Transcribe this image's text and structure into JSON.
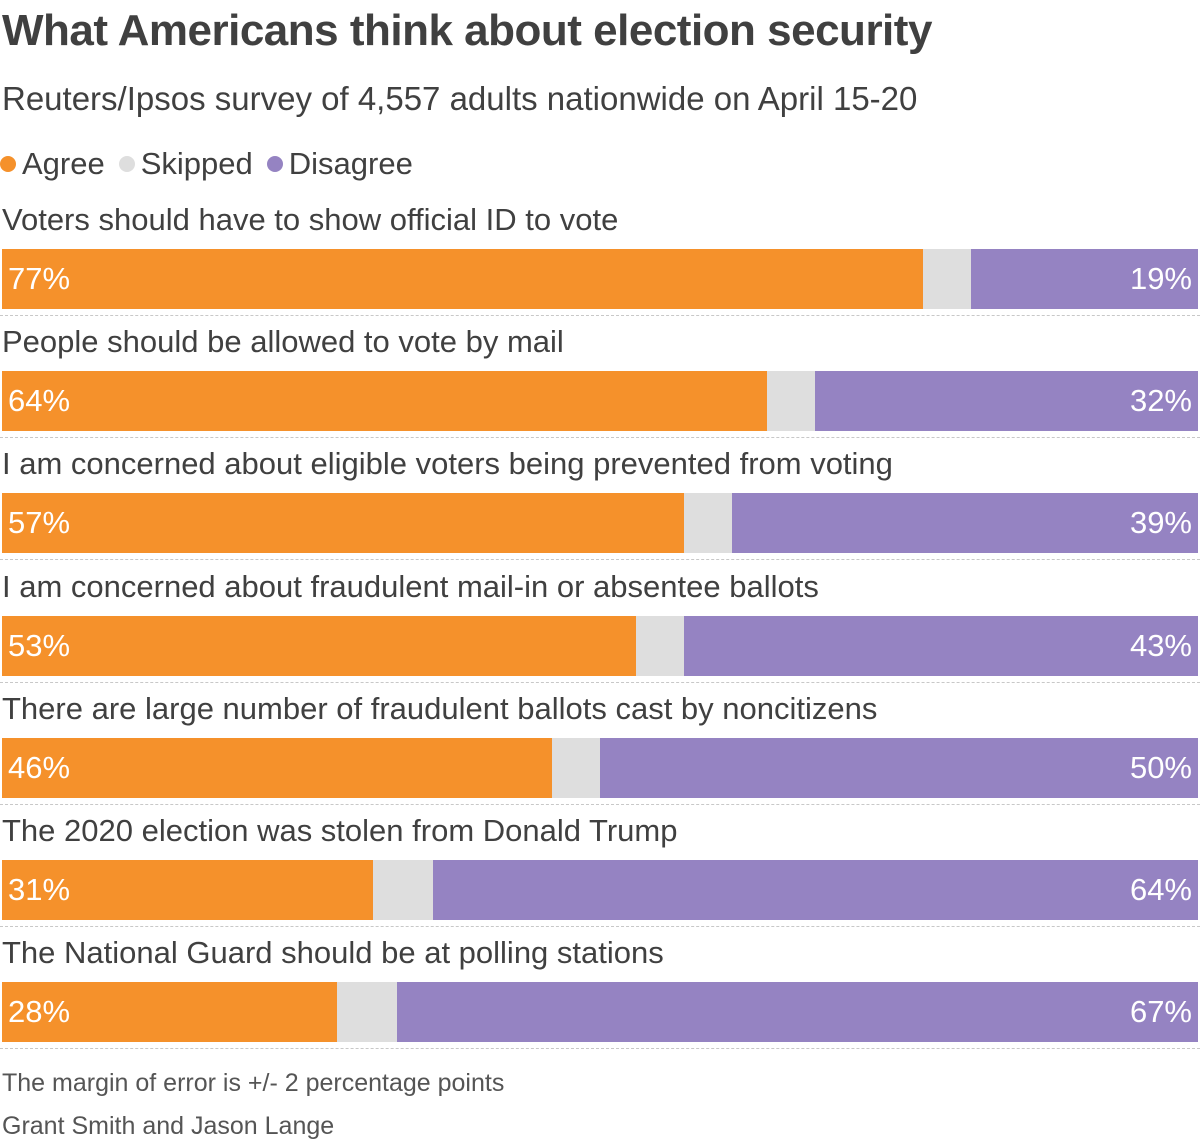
{
  "title": "What Americans think about election security",
  "subtitle": "Reuters/Ipsos survey of 4,557 adults nationwide on April 15-20",
  "colors": {
    "agree": "#f5912b",
    "skipped": "#dedede",
    "disagree": "#9583c2"
  },
  "legend": [
    {
      "key": "agree",
      "label": "Agree"
    },
    {
      "key": "skipped",
      "label": "Skipped"
    },
    {
      "key": "disagree",
      "label": "Disagree"
    }
  ],
  "chart_data": {
    "type": "bar",
    "orientation": "horizontal",
    "stacked": true,
    "unit": "%",
    "xlim": [
      0,
      100
    ],
    "categories": [
      "Voters should have to show official ID to vote",
      "People should be allowed to vote by mail",
      "I am concerned about eligible voters being prevented from voting",
      "I am concerned about fraudulent mail-in or absentee ballots",
      "There are large number of fraudulent ballots cast by noncitizens",
      "The 2020 election was stolen from Donald Trump",
      "The National Guard should be at polling stations"
    ],
    "series": [
      {
        "name": "Agree",
        "values": [
          77,
          64,
          57,
          53,
          46,
          31,
          28
        ]
      },
      {
        "name": "Skipped",
        "values": [
          4,
          4,
          4,
          4,
          4,
          5,
          5
        ]
      },
      {
        "name": "Disagree",
        "values": [
          19,
          32,
          39,
          43,
          50,
          64,
          67
        ]
      }
    ],
    "agree_labels": [
      "77%",
      "64%",
      "57%",
      "53%",
      "46%",
      "31%",
      "28%"
    ],
    "disagree_labels": [
      "19%",
      "32%",
      "39%",
      "43%",
      "50%",
      "64%",
      "67%"
    ]
  },
  "footnotes": {
    "margin_of_error": "The margin of error is +/- 2 percentage points",
    "credits": "Grant Smith and Jason Lange"
  }
}
